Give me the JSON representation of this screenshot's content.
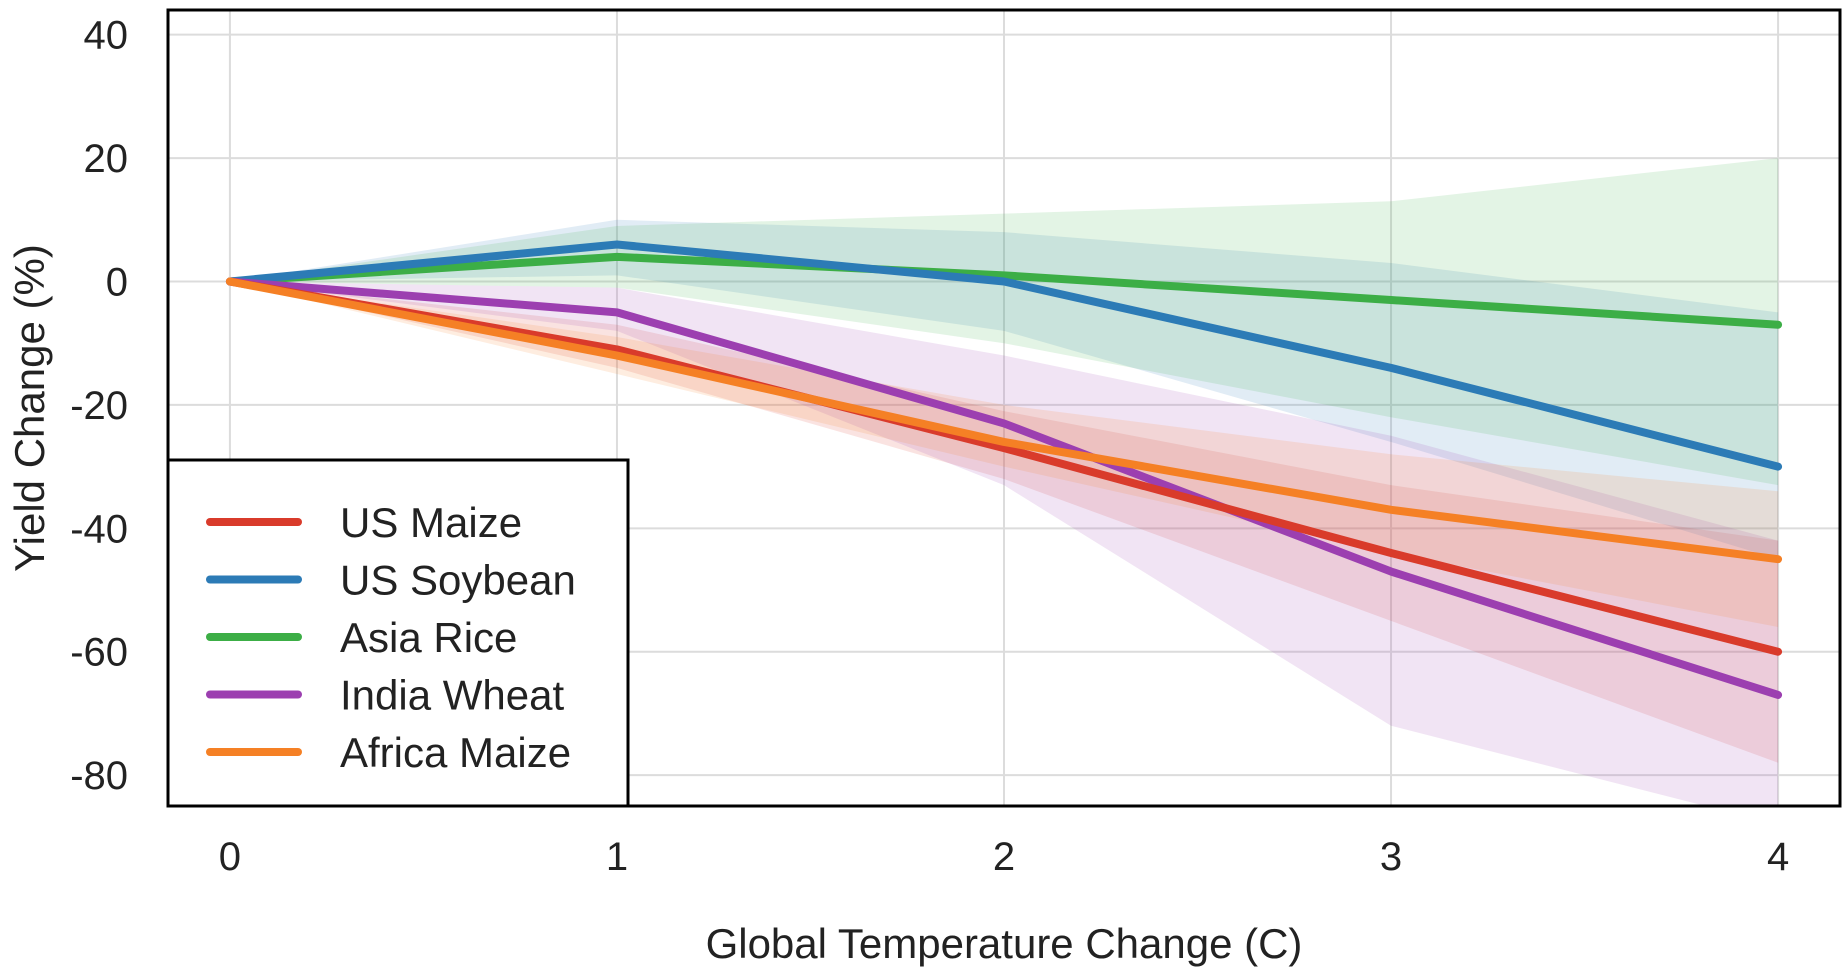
{
  "chart_data": {
    "type": "line",
    "xlabel": "Global Temperature Change (C)",
    "ylabel": "Yield Change (%)",
    "xlim": [
      -0.16,
      4.16
    ],
    "ylim": [
      -85,
      44
    ],
    "x_ticks": [
      0,
      1,
      2,
      3,
      4
    ],
    "y_ticks": [
      40,
      20,
      0,
      -20,
      -40,
      -60,
      -80
    ],
    "grid": true,
    "legend_position": "bottom-left",
    "x": [
      0,
      1,
      2,
      3,
      4
    ],
    "series": [
      {
        "name": "US Maize",
        "color": "#d93b2b",
        "values": [
          0,
          -11,
          -27,
          -44,
          -60
        ],
        "lower": [
          0,
          -14,
          -32,
          -55,
          -78
        ],
        "upper": [
          0,
          -7,
          -21,
          -33,
          -42
        ]
      },
      {
        "name": "US Soybean",
        "color": "#2c7bb6",
        "values": [
          0,
          6,
          0,
          -14,
          -30
        ],
        "lower": [
          0,
          1,
          -8,
          -26,
          -45
        ],
        "upper": [
          0,
          10,
          8,
          3,
          -5
        ]
      },
      {
        "name": "Asia Rice",
        "color": "#3cae46",
        "values": [
          0,
          4,
          1,
          -3,
          -7
        ],
        "lower": [
          0,
          -1,
          -10,
          -22,
          -33
        ],
        "upper": [
          0,
          9,
          11,
          13,
          20
        ]
      },
      {
        "name": "India Wheat",
        "color": "#9c3fb0",
        "values": [
          0,
          -5,
          -23,
          -47,
          -67
        ],
        "lower": [
          0,
          -8,
          -33,
          -72,
          -88
        ],
        "upper": [
          0,
          -1,
          -12,
          -25,
          -42
        ]
      },
      {
        "name": "Africa Maize",
        "color": "#f58025",
        "values": [
          0,
          -12,
          -26,
          -37,
          -45
        ],
        "lower": [
          0,
          -15,
          -30,
          -44,
          -56
        ],
        "upper": [
          0,
          -9,
          -20,
          -28,
          -34
        ]
      }
    ]
  }
}
